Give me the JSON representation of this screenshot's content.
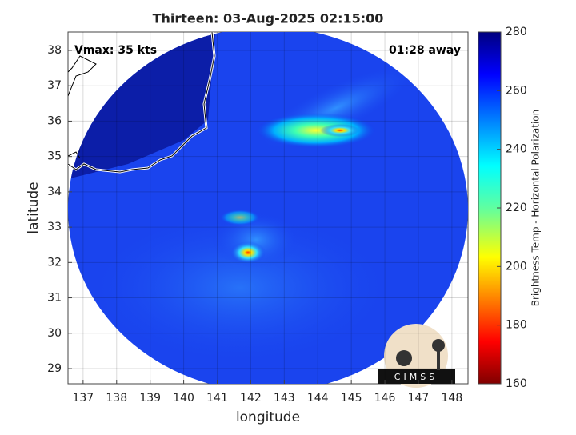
{
  "chart_data": {
    "type": "map",
    "title": "Thirteen: 03-Aug-2025 02:15:00",
    "annotations": [
      "Vmax: 35 kts",
      "01:28 away"
    ],
    "xlabel": "longitude",
    "ylabel": "latitude",
    "xlim": [
      136.55,
      148.48
    ],
    "ylim": [
      28.57,
      38.52
    ],
    "xticks": [
      137,
      138,
      139,
      140,
      141,
      142,
      143,
      144,
      145,
      146,
      147,
      148
    ],
    "yticks": [
      29,
      30,
      31,
      32,
      33,
      34,
      35,
      36,
      37,
      38
    ],
    "grid": true,
    "colorbar": {
      "label": "Brightness Temp - Horizontal Polarization",
      "lim": [
        160,
        280
      ],
      "ticks": [
        160,
        180,
        200,
        220,
        240,
        260,
        280
      ]
    },
    "logo": "CIMSS"
  }
}
